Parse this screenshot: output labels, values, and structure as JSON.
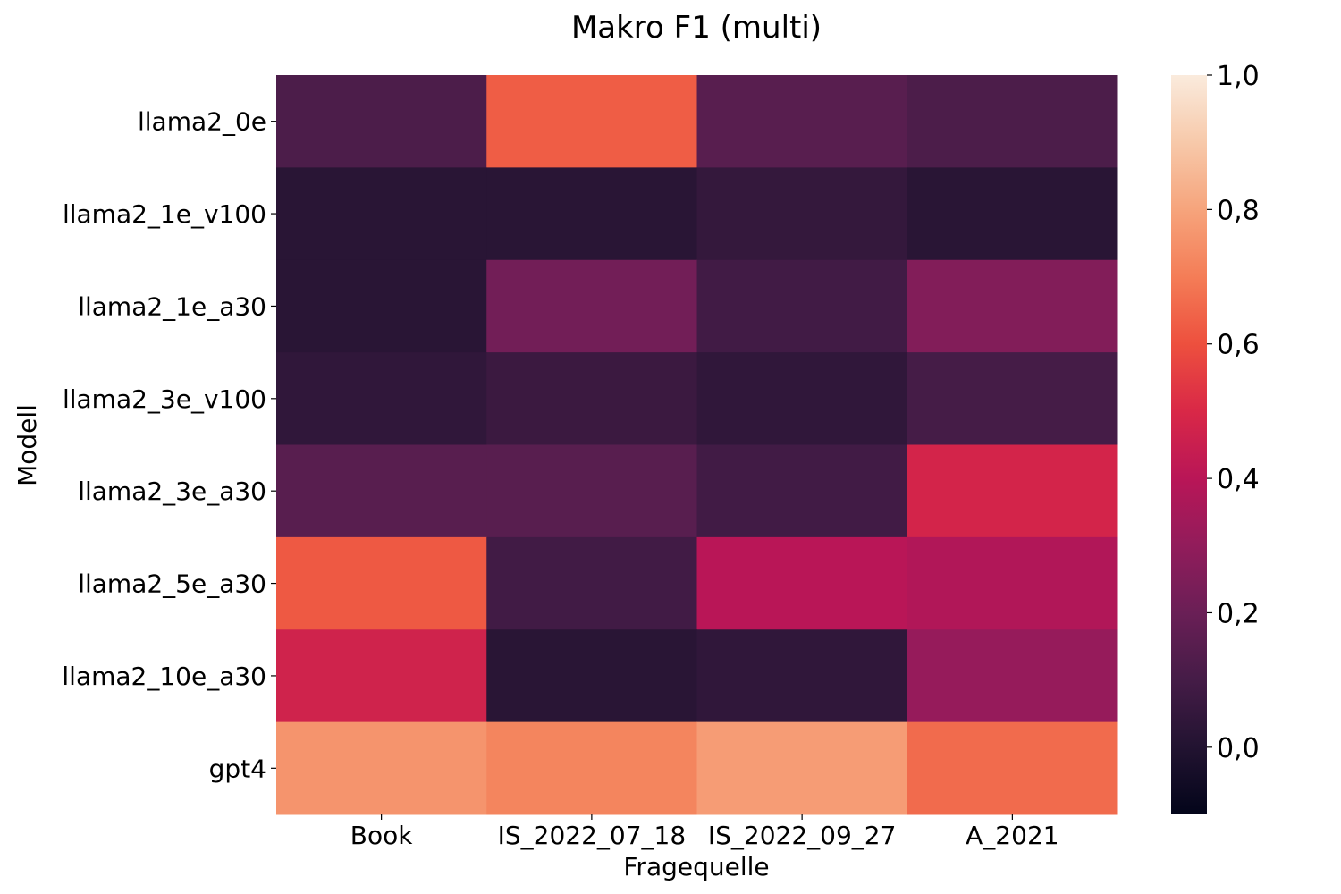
{
  "chart_data": {
    "type": "heatmap",
    "title": "Makro F1 (multi)",
    "xlabel": "Fragequelle",
    "ylabel": "Modell",
    "x_categories": [
      "Book",
      "IS_2022_07_18",
      "IS_2022_09_27",
      "A_2021"
    ],
    "y_categories": [
      "llama2_0e",
      "llama2_1e_v100",
      "llama2_1e_a30",
      "llama2_3e_v100",
      "llama2_3e_a30",
      "llama2_5e_a30",
      "llama2_10e_a30",
      "gpt4"
    ],
    "values": [
      [
        0.12,
        0.63,
        0.15,
        0.12
      ],
      [
        0.02,
        0.02,
        0.05,
        0.02
      ],
      [
        0.02,
        0.22,
        0.09,
        0.26
      ],
      [
        0.04,
        0.07,
        0.04,
        0.1
      ],
      [
        0.15,
        0.15,
        0.09,
        0.48
      ],
      [
        0.62,
        0.09,
        0.4,
        0.38
      ],
      [
        0.47,
        0.02,
        0.04,
        0.31
      ],
      [
        0.76,
        0.72,
        0.78,
        0.66
      ]
    ],
    "colorbar": {
      "range": [
        -0.1,
        1.0
      ],
      "ticks": [
        0.0,
        0.2,
        0.4,
        0.6,
        0.8,
        1.0
      ],
      "tick_labels": [
        "0,0",
        "0,2",
        "0,4",
        "0,6",
        "0,8",
        "1,0"
      ],
      "colormap": "rocket",
      "stops": [
        "#03051a",
        "#221331",
        "#451c47",
        "#6a1f56",
        "#921c5b",
        "#b91657",
        "#d92847",
        "#ed503e",
        "#f47d57",
        "#f6a47c",
        "#f7c9aa",
        "#faebdd"
      ]
    }
  }
}
